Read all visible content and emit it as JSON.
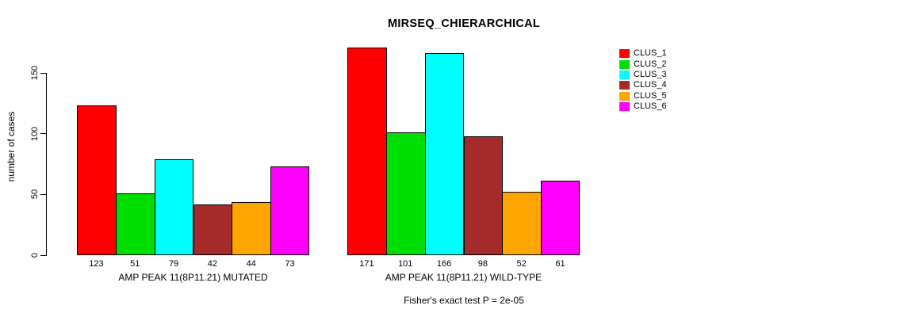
{
  "chart_data": {
    "type": "bar",
    "title": "MIRSEQ_CHIERARCHICAL",
    "ylabel": "number of cases",
    "xlabel": "",
    "yticks": [
      0,
      50,
      100,
      150
    ],
    "ylim": [
      0,
      175
    ],
    "grid": false,
    "legend_position": "right",
    "series": [
      {
        "name": "CLUS_1",
        "color": "#FF0000"
      },
      {
        "name": "CLUS_2",
        "color": "#00DD00"
      },
      {
        "name": "CLUS_3",
        "color": "#00FFFF"
      },
      {
        "name": "CLUS_4",
        "color": "#A52A2A"
      },
      {
        "name": "CLUS_5",
        "color": "#FFA500"
      },
      {
        "name": "CLUS_6",
        "color": "#FF00FF"
      }
    ],
    "groups": [
      {
        "label": "AMP PEAK 11(8P11.21) MUTATED",
        "values": [
          123,
          51,
          79,
          42,
          44,
          73
        ]
      },
      {
        "label": "AMP PEAK 11(8P11.21) WILD-TYPE",
        "values": [
          171,
          101,
          166,
          98,
          52,
          61
        ]
      }
    ],
    "footnote": "Fisher's exact test P = 2e-05"
  }
}
